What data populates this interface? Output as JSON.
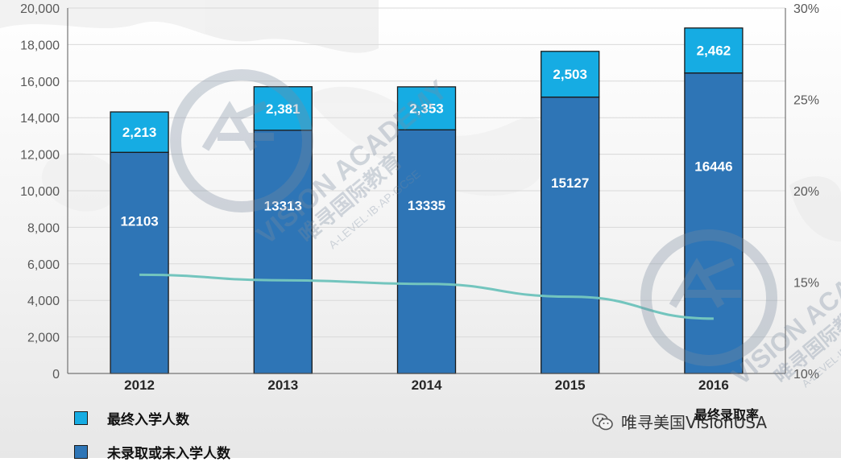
{
  "colors": {
    "admitted": "#16ace3",
    "not_enrolled": "#2e75b6",
    "rate_line": "#73c5be",
    "axis": "#595959"
  },
  "chart_data": {
    "type": "bar",
    "stacked": true,
    "categories": [
      "2012",
      "2013",
      "2014",
      "2015",
      "2016"
    ],
    "series": [
      {
        "name": "未录取或未入学人数",
        "values": [
          12103,
          13313,
          13335,
          15127,
          16446
        ],
        "labels": [
          "12103",
          "13313",
          "13335",
          "15127",
          "16446"
        ]
      },
      {
        "name": "最终入学人数",
        "values": [
          2213,
          2381,
          2353,
          2503,
          2462
        ],
        "labels": [
          "2,213",
          "2,381",
          "2,353",
          "2,503",
          "2,462"
        ]
      }
    ],
    "line_series": {
      "name": "最终录取率",
      "axis": "right",
      "values": [
        15.4,
        15.1,
        14.9,
        14.2,
        13.0
      ]
    },
    "ylim": [
      0,
      20000
    ],
    "yticks": [
      "0",
      "2,000",
      "4,000",
      "6,000",
      "8,000",
      "10,000",
      "12,000",
      "14,000",
      "16,000",
      "18,000",
      "20,000"
    ],
    "y2lim": [
      10,
      30
    ],
    "y2ticks": [
      "10%",
      "15%",
      "20%",
      "25%",
      "30%"
    ],
    "legend": [
      "最终入学人数",
      "未录取或未入学人数",
      "最终录取率"
    ]
  },
  "watermark": {
    "line1": "VISION ACADEMY",
    "line2": "唯寻国际教育",
    "line3": "A-LEVEL·IB·AP·GCSE"
  },
  "credit": {
    "icon": "wechat-icon",
    "text": "唯寻美国VisionUSA"
  }
}
